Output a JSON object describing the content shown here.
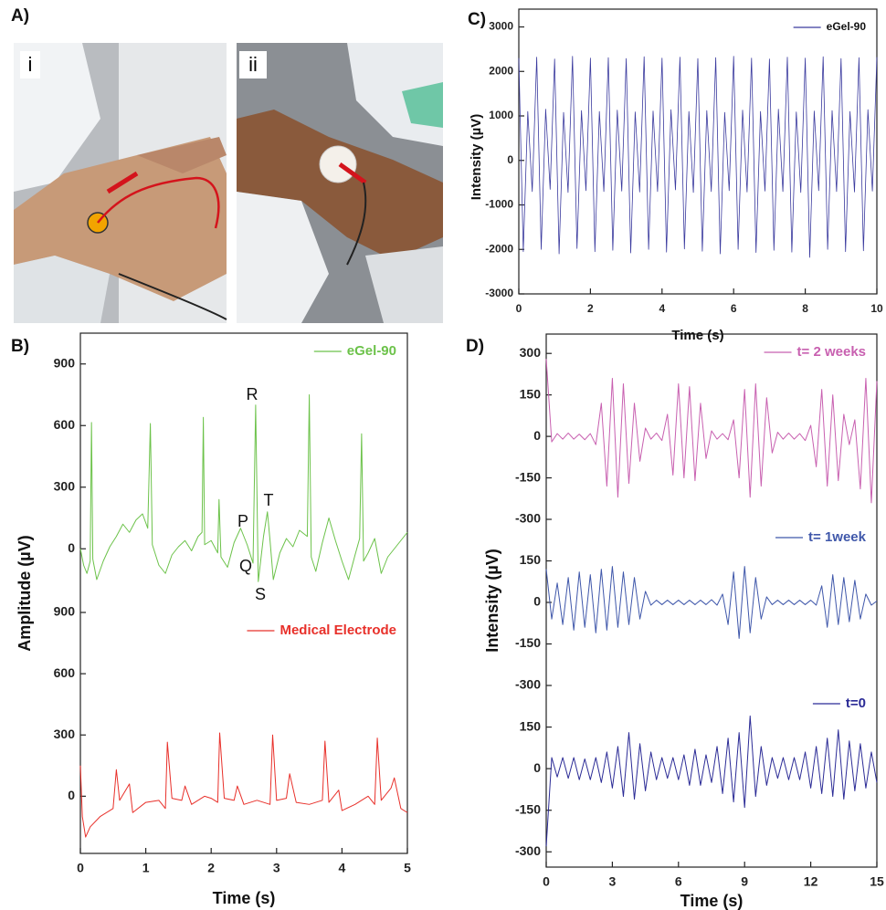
{
  "figure": {
    "panel_labels": [
      "A)",
      "B)",
      "C)",
      "D)"
    ],
    "photo_labels": [
      "i",
      "ii"
    ]
  },
  "chart_data": [
    {
      "type": "line",
      "ylabel": "Amplitude (µV)",
      "xlim": [
        0,
        5
      ],
      "ylim": [
        -310,
        1050
      ],
      "yticks": [
        0,
        300,
        600,
        900
      ],
      "legend": "upper right",
      "annotations": [
        "R",
        "P",
        "T",
        "Q",
        "S"
      ],
      "series": [
        {
          "name": "eGel-90",
          "color": "#6cc24a",
          "x": [
            0,
            0.05,
            0.1,
            0.15,
            0.17,
            0.19,
            0.25,
            0.35,
            0.45,
            0.55,
            0.65,
            0.75,
            0.85,
            0.95,
            1.03,
            1.07,
            1.1,
            1.2,
            1.3,
            1.4,
            1.5,
            1.6,
            1.7,
            1.8,
            1.86,
            1.88,
            1.9,
            2,
            2.1,
            2.12,
            2.15,
            2.25,
            2.35,
            2.45,
            2.55,
            2.64,
            2.68,
            2.72,
            2.8,
            2.86,
            2.9,
            2.95,
            3.05,
            3.15,
            3.25,
            3.35,
            3.47,
            3.5,
            3.53,
            3.6,
            3.7,
            3.8,
            3.9,
            4,
            4.1,
            4.2,
            4.27,
            4.3,
            4.33,
            4.4,
            4.5,
            4.6,
            4.7,
            4.8,
            4.9,
            5
          ],
          "values": [
            0,
            -80,
            -120,
            -60,
            615,
            -50,
            -150,
            -60,
            10,
            60,
            120,
            80,
            140,
            170,
            100,
            610,
            20,
            -80,
            -120,
            -30,
            10,
            40,
            -10,
            60,
            80,
            640,
            20,
            40,
            -20,
            240,
            -40,
            -90,
            30,
            100,
            20,
            -70,
            700,
            -160,
            60,
            180,
            40,
            -150,
            -20,
            50,
            10,
            90,
            60,
            750,
            -40,
            -110,
            30,
            150,
            40,
            -60,
            -150,
            -30,
            50,
            560,
            -60,
            -20,
            50,
            -120,
            -40,
            0,
            40,
            80
          ]
        }
      ]
    },
    {
      "type": "line",
      "xlabel": "Time (s)",
      "xlim": [
        0,
        5
      ],
      "xticks": [
        0,
        1,
        2,
        3,
        4,
        5
      ],
      "ylim": [
        -280,
        900
      ],
      "yticks": [
        0,
        300,
        600,
        900
      ],
      "legend": "upper right",
      "series": [
        {
          "name": "Medical Electrode",
          "color": "#e8302a",
          "x": [
            0,
            0.03,
            0.08,
            0.15,
            0.3,
            0.5,
            0.55,
            0.6,
            0.75,
            0.8,
            1,
            1.2,
            1.3,
            1.33,
            1.4,
            1.55,
            1.6,
            1.7,
            1.9,
            2,
            2.1,
            2.13,
            2.2,
            2.35,
            2.4,
            2.5,
            2.7,
            2.9,
            2.94,
            3,
            3.15,
            3.2,
            3.3,
            3.5,
            3.7,
            3.74,
            3.8,
            3.95,
            4,
            4.2,
            4.4,
            4.5,
            4.54,
            4.6,
            4.75,
            4.8,
            4.9,
            5
          ],
          "values": [
            150,
            -100,
            -200,
            -150,
            -100,
            -60,
            130,
            -20,
            60,
            -80,
            -30,
            -20,
            -60,
            265,
            -10,
            -20,
            50,
            -40,
            0,
            -10,
            -30,
            310,
            -10,
            -20,
            50,
            -40,
            -20,
            -40,
            300,
            -20,
            -10,
            110,
            -30,
            -40,
            -20,
            270,
            -30,
            30,
            -70,
            -40,
            0,
            -40,
            285,
            -20,
            40,
            90,
            -60,
            -80
          ]
        }
      ]
    },
    {
      "type": "line",
      "xlabel": "Time (s)",
      "ylabel": "Intensity (µV)",
      "xlim": [
        0,
        10
      ],
      "xticks": [
        0,
        2,
        4,
        6,
        8,
        10
      ],
      "ylim": [
        -3000,
        3400
      ],
      "yticks": [
        -3000,
        -2000,
        -1000,
        0,
        1000,
        2000,
        3000
      ],
      "legend": "upper right",
      "legend_text_color": "#111111",
      "x": [
        0,
        0.125,
        0.25,
        0.375,
        0.5,
        0.625,
        0.75,
        0.875,
        1,
        1.125,
        1.25,
        1.375,
        1.5,
        1.625,
        1.75,
        1.875,
        2,
        2.125,
        2.25,
        2.375,
        2.5,
        2.625,
        2.75,
        2.875,
        3,
        3.125,
        3.25,
        3.375,
        3.5,
        3.625,
        3.75,
        3.875,
        4,
        4.125,
        4.25,
        4.375,
        4.5,
        4.625,
        4.75,
        4.875,
        5,
        5.125,
        5.25,
        5.375,
        5.5,
        5.625,
        5.75,
        5.875,
        6,
        6.125,
        6.25,
        6.375,
        6.5,
        6.625,
        6.75,
        6.875,
        7,
        7.125,
        7.25,
        7.375,
        7.5,
        7.625,
        7.75,
        7.875,
        8,
        8.125,
        8.25,
        8.375,
        8.5,
        8.625,
        8.75,
        8.875,
        9,
        9.125,
        9.25,
        9.375,
        9.5,
        9.625,
        9.75,
        9.875,
        10
      ],
      "series": [
        {
          "name": "eGel-90",
          "color": "#3a3a9e",
          "values": [
            2300,
            -2050,
            1100,
            -700,
            2320,
            -2000,
            1150,
            -650,
            2280,
            -2100,
            1080,
            -720,
            2340,
            -1980,
            1120,
            -680,
            2300,
            -2050,
            1100,
            -700,
            2310,
            -2020,
            1130,
            -690,
            2290,
            -2080,
            1090,
            -710,
            2330,
            -2000,
            1110,
            -700,
            2300,
            -2060,
            1140,
            -660,
            2320,
            -1990,
            1100,
            -720,
            2290,
            -2040,
            1120,
            -700,
            2310,
            -2100,
            1080,
            -680,
            2340,
            -2000,
            1130,
            -710,
            2300,
            -2070,
            1100,
            -690,
            2280,
            -2020,
            1150,
            -700,
            2320,
            -2060,
            1090,
            -720,
            2300,
            -2180,
            1110,
            -680,
            2330,
            -2000,
            1120,
            -700,
            2290,
            -2050,
            1100,
            -710,
            2310,
            -2030,
            1140,
            -690,
            2320
          ]
        }
      ]
    },
    {
      "type": "line",
      "ylabel": "Intensity (µV)",
      "xlim": [
        0,
        15
      ],
      "ylim": [
        -300,
        370
      ],
      "yticks": [
        300,
        150,
        0,
        -150,
        -300
      ],
      "legend": "upper right",
      "x": [
        0,
        0.25,
        0.5,
        0.75,
        1,
        1.25,
        1.5,
        1.75,
        2,
        2.25,
        2.5,
        2.75,
        3,
        3.25,
        3.5,
        3.75,
        4,
        4.25,
        4.5,
        4.75,
        5,
        5.25,
        5.5,
        5.75,
        6,
        6.25,
        6.5,
        6.75,
        7,
        7.25,
        7.5,
        7.75,
        8,
        8.25,
        8.5,
        8.75,
        9,
        9.25,
        9.5,
        9.75,
        10,
        10.25,
        10.5,
        10.75,
        11,
        11.25,
        11.5,
        11.75,
        12,
        12.25,
        12.5,
        12.75,
        13,
        13.25,
        13.5,
        13.75,
        14,
        14.25,
        14.5,
        14.75,
        15
      ],
      "series": [
        {
          "name": "t= 2 weeks",
          "color": "#c860b0",
          "values": [
            280,
            -20,
            10,
            -10,
            12,
            -10,
            8,
            -12,
            10,
            -30,
            120,
            -180,
            210,
            -220,
            190,
            -170,
            120,
            -90,
            30,
            -10,
            12,
            -15,
            80,
            -140,
            190,
            -150,
            180,
            -160,
            120,
            -80,
            20,
            -10,
            10,
            -12,
            60,
            -150,
            170,
            -220,
            190,
            -180,
            140,
            -60,
            15,
            -10,
            12,
            -10,
            10,
            -15,
            40,
            -110,
            170,
            -180,
            150,
            -160,
            80,
            -30,
            60,
            -190,
            210,
            -240,
            200
          ]
        }
      ]
    },
    {
      "type": "line",
      "xlim": [
        0,
        15
      ],
      "ylim": [
        -300,
        300
      ],
      "yticks": [
        150,
        0,
        -150,
        -300
      ],
      "legend": "upper right",
      "x": [
        0,
        0.25,
        0.5,
        0.75,
        1,
        1.25,
        1.5,
        1.75,
        2,
        2.25,
        2.5,
        2.75,
        3,
        3.25,
        3.5,
        3.75,
        4,
        4.25,
        4.5,
        4.75,
        5,
        5.25,
        5.5,
        5.75,
        6,
        6.25,
        6.5,
        6.75,
        7,
        7.25,
        7.5,
        7.75,
        8,
        8.25,
        8.5,
        8.75,
        9,
        9.25,
        9.5,
        9.75,
        10,
        10.25,
        10.5,
        10.75,
        11,
        11.25,
        11.5,
        11.75,
        12,
        12.25,
        12.5,
        12.75,
        13,
        13.25,
        13.5,
        13.75,
        14,
        14.25,
        14.5,
        14.75,
        15
      ],
      "series": [
        {
          "name": "t= 1week",
          "color": "#3f57aa",
          "values": [
            120,
            -60,
            70,
            -80,
            90,
            -100,
            110,
            -90,
            100,
            -110,
            120,
            -100,
            130,
            -90,
            110,
            -80,
            90,
            -60,
            40,
            -10,
            8,
            -8,
            8,
            -8,
            8,
            -8,
            8,
            -8,
            8,
            -8,
            10,
            -10,
            30,
            -80,
            110,
            -130,
            130,
            -110,
            90,
            -60,
            20,
            -8,
            8,
            -8,
            8,
            -8,
            8,
            -8,
            8,
            -10,
            60,
            -90,
            100,
            -80,
            90,
            -70,
            80,
            -60,
            30,
            -10,
            5
          ]
        }
      ]
    },
    {
      "type": "line",
      "xlabel": "Time (s)",
      "xlim": [
        0,
        15
      ],
      "xticks": [
        0,
        3,
        6,
        9,
        12,
        15
      ],
      "ylim": [
        -355,
        300
      ],
      "yticks": [
        150,
        0,
        -150,
        -300
      ],
      "legend": "upper right",
      "x": [
        0,
        0.25,
        0.5,
        0.75,
        1,
        1.25,
        1.5,
        1.75,
        2,
        2.25,
        2.5,
        2.75,
        3,
        3.25,
        3.5,
        3.75,
        4,
        4.25,
        4.5,
        4.75,
        5,
        5.25,
        5.5,
        5.75,
        6,
        6.25,
        6.5,
        6.75,
        7,
        7.25,
        7.5,
        7.75,
        8,
        8.25,
        8.5,
        8.75,
        9,
        9.25,
        9.5,
        9.75,
        10,
        10.25,
        10.5,
        10.75,
        11,
        11.25,
        11.5,
        11.75,
        12,
        12.25,
        12.5,
        12.75,
        13,
        13.25,
        13.5,
        13.75,
        14,
        14.25,
        14.5,
        14.75,
        15
      ],
      "series": [
        {
          "name": "t=0",
          "color": "#2b2b96",
          "values": [
            -280,
            40,
            -30,
            40,
            -35,
            40,
            -40,
            35,
            -40,
            40,
            -50,
            60,
            -70,
            80,
            -100,
            130,
            -110,
            90,
            -80,
            60,
            -40,
            40,
            -35,
            40,
            -40,
            50,
            -60,
            70,
            -60,
            50,
            -50,
            80,
            -90,
            110,
            -120,
            130,
            -140,
            190,
            -100,
            80,
            -60,
            40,
            -35,
            40,
            -40,
            40,
            -40,
            60,
            -70,
            80,
            -90,
            110,
            -100,
            140,
            -110,
            100,
            -80,
            90,
            -70,
            60,
            -50
          ]
        }
      ]
    }
  ]
}
